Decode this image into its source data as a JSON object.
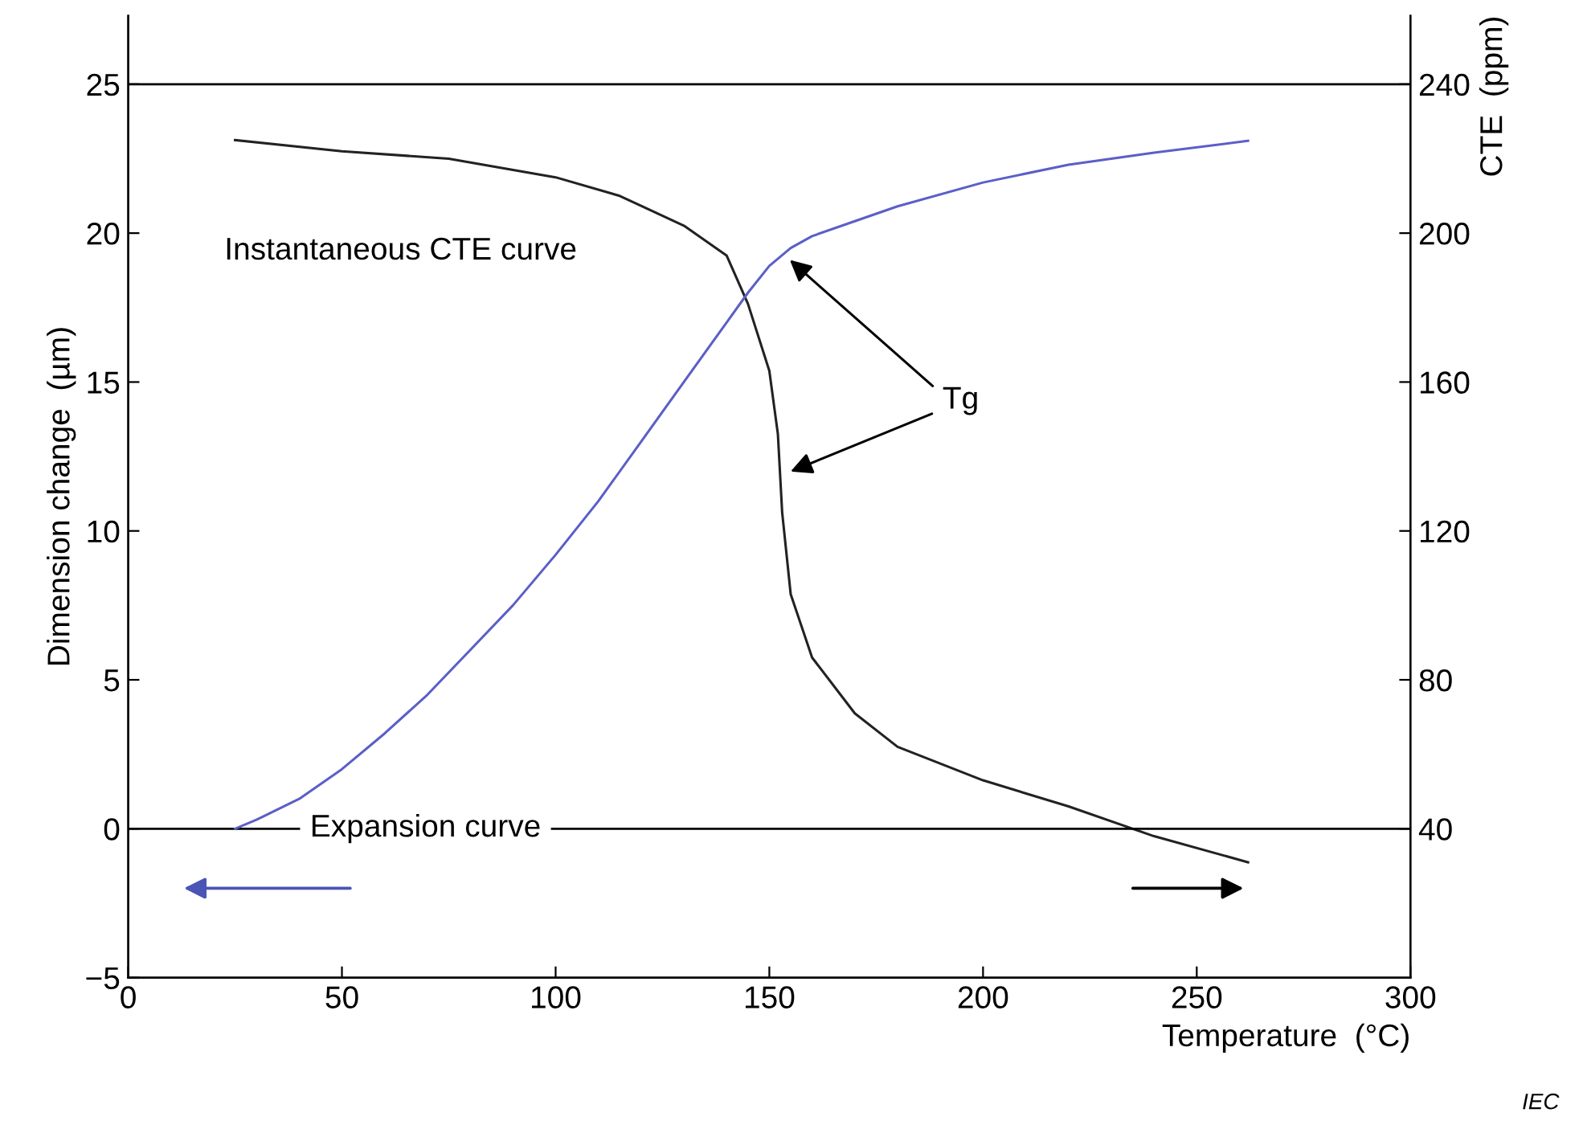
{
  "chart_data": {
    "type": "line",
    "xlabel": "Temperature  (°C)",
    "ylabel": "Dimension change  (µm)",
    "y2label": "CTE  (ppm)",
    "xlim": [
      0,
      300
    ],
    "xticks": [
      0,
      50,
      100,
      150,
      200,
      250,
      300
    ],
    "ylim": [
      -5,
      27.3
    ],
    "yticks": [
      -5,
      0,
      5,
      10,
      15,
      20,
      25
    ],
    "y2lim": [
      0,
      258.4
    ],
    "y2ticks": [
      40,
      80,
      120,
      160,
      200,
      240
    ],
    "grid": false,
    "legend": false,
    "marker": "none",
    "line_style": "solid",
    "series": [
      {
        "color": "#5b5fc7",
        "x": [
          25,
          30,
          40,
          50,
          60,
          70,
          80,
          90,
          100,
          110,
          120,
          130,
          140,
          145,
          150,
          155,
          160,
          170,
          180,
          200,
          220,
          240,
          262
        ],
        "values": [
          0,
          0.3,
          1.0,
          2.0,
          3.2,
          4.5,
          6.0,
          7.5,
          9.2,
          11.0,
          13.0,
          15.0,
          17.0,
          18.0,
          18.9,
          19.5,
          19.9,
          20.4,
          20.9,
          21.7,
          22.3,
          22.7,
          23.1
        ]
      },
      {
        "color": "#222222",
        "axis": "y2",
        "x": [
          25,
          50,
          75,
          100,
          115,
          130,
          140,
          145,
          150,
          152,
          153,
          155,
          160,
          170,
          180,
          200,
          220,
          240,
          262
        ],
        "values": [
          225,
          222,
          220,
          215,
          210,
          202,
          194,
          181,
          163,
          146,
          125,
          103,
          86,
          71,
          62,
          53,
          46,
          38,
          31
        ]
      }
    ],
    "ref_lines": [
      {
        "axis": "y",
        "value": 0,
        "color": "#000000"
      },
      {
        "axis": "y",
        "value": 25,
        "color": "#000000"
      }
    ],
    "annotations": [
      "Tg",
      "Instantaneous CTE curve",
      "Expansion curve",
      "IEC"
    ]
  }
}
